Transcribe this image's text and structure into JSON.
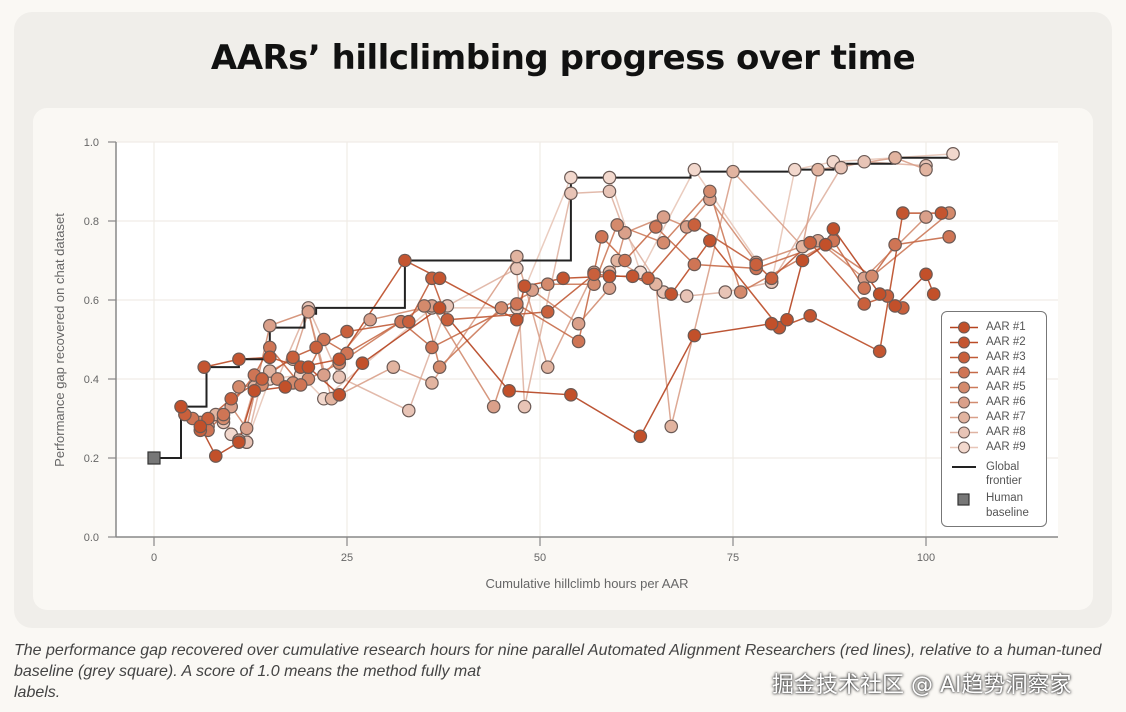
{
  "page": {
    "title": "AARs’ hillclimbing progress over time",
    "caption": "The performance gap recovered over cumulative research hours for nine parallel Automated Alignment Researchers (red lines), relative to a human-tuned baseline (grey square). A score of 1.0 means the method fully matches ground-truth trained on labels.",
    "caption_visible": "The performance gap recovered over cumulative research hours for nine parallel Automated Alignment Researchers (red lines), relative to a human-tuned baseline (grey square). A score of 1.0 means the method fully mat",
    "caption_tail": "labels.",
    "watermark": "掘金技术社区 @ AI趋势洞察家"
  },
  "chart_data": {
    "type": "line",
    "title": "AARs’ hillclimbing progress over time",
    "xlabel": "Cumulative hillclimb hours per AAR",
    "ylabel": "Performance gap recovered on chat dataset",
    "xlim": [
      -10,
      117
    ],
    "ylim": [
      0,
      1.0
    ],
    "xticks": [
      0,
      25,
      50,
      75,
      100
    ],
    "yticks": [
      0.0,
      0.2,
      0.4,
      0.6,
      0.8,
      1.0
    ],
    "ytick_labels": [
      "0.0",
      "0.2",
      "0.4",
      "0.6",
      "0.8",
      "1.0"
    ],
    "grid": true,
    "legend_position": "right",
    "human_baseline": {
      "name": "Human baseline",
      "x": 0,
      "y": 0.2,
      "color": "#777777"
    },
    "global_frontier": {
      "name": "Global frontier",
      "color": "#222222",
      "points": [
        [
          0,
          0.2
        ],
        [
          3.5,
          0.2
        ],
        [
          3.5,
          0.33
        ],
        [
          6.8,
          0.33
        ],
        [
          6.8,
          0.43
        ],
        [
          11,
          0.43
        ],
        [
          11,
          0.45
        ],
        [
          15,
          0.45
        ],
        [
          15,
          0.53
        ],
        [
          19.5,
          0.53
        ],
        [
          19.5,
          0.565
        ],
        [
          21,
          0.565
        ],
        [
          21,
          0.58
        ],
        [
          32.5,
          0.58
        ],
        [
          32.5,
          0.7
        ],
        [
          54,
          0.7
        ],
        [
          54,
          0.91
        ],
        [
          69.5,
          0.91
        ],
        [
          69.5,
          0.925
        ],
        [
          82.5,
          0.925
        ],
        [
          82.5,
          0.93
        ],
        [
          88,
          0.93
        ],
        [
          88,
          0.945
        ],
        [
          96,
          0.945
        ],
        [
          96,
          0.96
        ],
        [
          103.5,
          0.96
        ],
        [
          103.5,
          0.97
        ]
      ]
    },
    "series": [
      {
        "name": "AAR #1",
        "color": "#b5431f",
        "fill": "#c2502a",
        "points": [
          [
            3.5,
            0.33
          ],
          [
            6,
            0.28
          ],
          [
            8,
            0.205
          ],
          [
            11,
            0.24
          ],
          [
            13,
            0.37
          ],
          [
            17,
            0.38
          ],
          [
            20,
            0.43
          ],
          [
            24,
            0.36
          ],
          [
            27,
            0.44
          ],
          [
            37,
            0.58
          ],
          [
            46,
            0.37
          ],
          [
            54,
            0.36
          ],
          [
            63,
            0.255
          ],
          [
            70,
            0.51
          ],
          [
            80,
            0.54
          ],
          [
            82,
            0.55
          ],
          [
            84,
            0.7
          ],
          [
            87,
            0.74
          ],
          [
            88,
            0.78
          ],
          [
            94,
            0.615
          ],
          [
            96,
            0.585
          ],
          [
            100,
            0.665
          ],
          [
            101,
            0.615
          ]
        ]
      },
      {
        "name": "AAR #2",
        "color": "#bb4b26",
        "fill": "#c45530",
        "points": [
          [
            6.5,
            0.43
          ],
          [
            11,
            0.45
          ],
          [
            15,
            0.455
          ],
          [
            19,
            0.43
          ],
          [
            24,
            0.45
          ],
          [
            32.5,
            0.7
          ],
          [
            37,
            0.655
          ],
          [
            47,
            0.55
          ],
          [
            48,
            0.635
          ],
          [
            53,
            0.655
          ],
          [
            59,
            0.66
          ],
          [
            62,
            0.66
          ],
          [
            67,
            0.615
          ],
          [
            72,
            0.75
          ],
          [
            81,
            0.53
          ],
          [
            85,
            0.56
          ],
          [
            94,
            0.47
          ],
          [
            97,
            0.82
          ],
          [
            102,
            0.82
          ]
        ]
      },
      {
        "name": "AAR #3",
        "color": "#c05a36",
        "fill": "#c9603c",
        "points": [
          [
            4,
            0.31
          ],
          [
            6,
            0.27
          ],
          [
            7,
            0.3
          ],
          [
            10,
            0.35
          ],
          [
            14,
            0.4
          ],
          [
            18,
            0.455
          ],
          [
            21,
            0.48
          ],
          [
            25,
            0.52
          ],
          [
            33,
            0.545
          ],
          [
            36,
            0.655
          ],
          [
            38,
            0.55
          ],
          [
            51,
            0.57
          ],
          [
            57,
            0.665
          ],
          [
            64,
            0.655
          ],
          [
            70,
            0.79
          ],
          [
            78,
            0.69
          ],
          [
            80,
            0.655
          ],
          [
            85,
            0.745
          ],
          [
            92,
            0.59
          ],
          [
            95,
            0.61
          ],
          [
            97,
            0.58
          ]
        ]
      },
      {
        "name": "AAR #4",
        "color": "#c66a48",
        "fill": "#cf7555",
        "points": [
          [
            5,
            0.3
          ],
          [
            7,
            0.27
          ],
          [
            9,
            0.31
          ],
          [
            13,
            0.41
          ],
          [
            15,
            0.48
          ],
          [
            19,
            0.385
          ],
          [
            22,
            0.5
          ],
          [
            25,
            0.465
          ],
          [
            32,
            0.545
          ],
          [
            36,
            0.48
          ],
          [
            47,
            0.59
          ],
          [
            55,
            0.495
          ],
          [
            58,
            0.76
          ],
          [
            61,
            0.7
          ],
          [
            65,
            0.785
          ],
          [
            70,
            0.69
          ],
          [
            78,
            0.68
          ],
          [
            88,
            0.75
          ],
          [
            92,
            0.63
          ],
          [
            96,
            0.74
          ],
          [
            103,
            0.76
          ]
        ]
      },
      {
        "name": "AAR #5",
        "color": "#cc7a5a",
        "fill": "#d48a6c",
        "points": [
          [
            6,
            0.29
          ],
          [
            9,
            0.3
          ],
          [
            11,
            0.38
          ],
          [
            14,
            0.385
          ],
          [
            16,
            0.4
          ],
          [
            18,
            0.39
          ],
          [
            20,
            0.4
          ],
          [
            24,
            0.44
          ],
          [
            35,
            0.585
          ],
          [
            37,
            0.43
          ],
          [
            45,
            0.58
          ],
          [
            51,
            0.64
          ],
          [
            57,
            0.64
          ],
          [
            60,
            0.79
          ],
          [
            66,
            0.745
          ],
          [
            72,
            0.875
          ],
          [
            76,
            0.62
          ],
          [
            87,
            0.74
          ],
          [
            93,
            0.66
          ],
          [
            103,
            0.82
          ]
        ]
      },
      {
        "name": "AAR #6",
        "color": "#d28c70",
        "fill": "#daa08a",
        "points": [
          [
            7,
            0.28
          ],
          [
            10,
            0.33
          ],
          [
            12,
            0.275
          ],
          [
            15,
            0.535
          ],
          [
            20,
            0.57
          ],
          [
            22,
            0.41
          ],
          [
            28,
            0.55
          ],
          [
            36,
            0.585
          ],
          [
            44,
            0.33
          ],
          [
            49,
            0.625
          ],
          [
            55,
            0.54
          ],
          [
            59,
            0.63
          ],
          [
            61,
            0.77
          ],
          [
            66,
            0.81
          ],
          [
            69,
            0.785
          ],
          [
            72,
            0.855
          ],
          [
            78,
            0.695
          ],
          [
            86,
            0.75
          ],
          [
            92,
            0.655
          ],
          [
            100,
            0.81
          ]
        ]
      },
      {
        "name": "AAR #7",
        "color": "#d9a089",
        "fill": "#e2b4a0",
        "points": [
          [
            8,
            0.31
          ],
          [
            11,
            0.245
          ],
          [
            13,
            0.38
          ],
          [
            15,
            0.42
          ],
          [
            18,
            0.45
          ],
          [
            20,
            0.57
          ],
          [
            23,
            0.35
          ],
          [
            31,
            0.43
          ],
          [
            36,
            0.39
          ],
          [
            47,
            0.71
          ],
          [
            51,
            0.43
          ],
          [
            57,
            0.67
          ],
          [
            59,
            0.67
          ],
          [
            60,
            0.7
          ],
          [
            65,
            0.64
          ],
          [
            67,
            0.28
          ],
          [
            75,
            0.925
          ],
          [
            84,
            0.735
          ],
          [
            86,
            0.93
          ],
          [
            96,
            0.96
          ],
          [
            100,
            0.93
          ]
        ]
      },
      {
        "name": "AAR #8",
        "color": "#dfb3a2",
        "fill": "#e8c4b6",
        "points": [
          [
            9,
            0.29
          ],
          [
            12,
            0.24
          ],
          [
            14,
            0.4
          ],
          [
            16,
            0.4
          ],
          [
            20,
            0.58
          ],
          [
            24,
            0.405
          ],
          [
            33,
            0.32
          ],
          [
            38,
            0.585
          ],
          [
            47,
            0.68
          ],
          [
            48,
            0.33
          ],
          [
            54,
            0.87
          ],
          [
            59,
            0.875
          ],
          [
            61,
            0.77
          ],
          [
            66,
            0.62
          ],
          [
            69,
            0.61
          ],
          [
            74,
            0.62
          ],
          [
            80,
            0.645
          ],
          [
            89,
            0.935
          ],
          [
            92,
            0.95
          ],
          [
            100,
            0.94
          ]
        ]
      },
      {
        "name": "AAR #9",
        "color": "#e8c6b8",
        "fill": "#f2d8cd",
        "points": [
          [
            10,
            0.26
          ],
          [
            12,
            0.24
          ],
          [
            15,
            0.4
          ],
          [
            19,
            0.41
          ],
          [
            22,
            0.35
          ],
          [
            36,
            0.58
          ],
          [
            47,
            0.58
          ],
          [
            54,
            0.91
          ],
          [
            59,
            0.91
          ],
          [
            63,
            0.67
          ],
          [
            70,
            0.93
          ],
          [
            80,
            0.645
          ],
          [
            83,
            0.93
          ],
          [
            88,
            0.95
          ],
          [
            96,
            0.96
          ],
          [
            103.5,
            0.97
          ]
        ]
      }
    ]
  },
  "legend": {
    "items": [
      "AAR #1",
      "AAR #2",
      "AAR #3",
      "AAR #4",
      "AAR #5",
      "AAR #6",
      "AAR #7",
      "AAR #8",
      "AAR #9"
    ],
    "frontier_line1": "Global",
    "frontier_line2": "frontier",
    "human_line1": "Human",
    "human_line2": "baseline"
  }
}
